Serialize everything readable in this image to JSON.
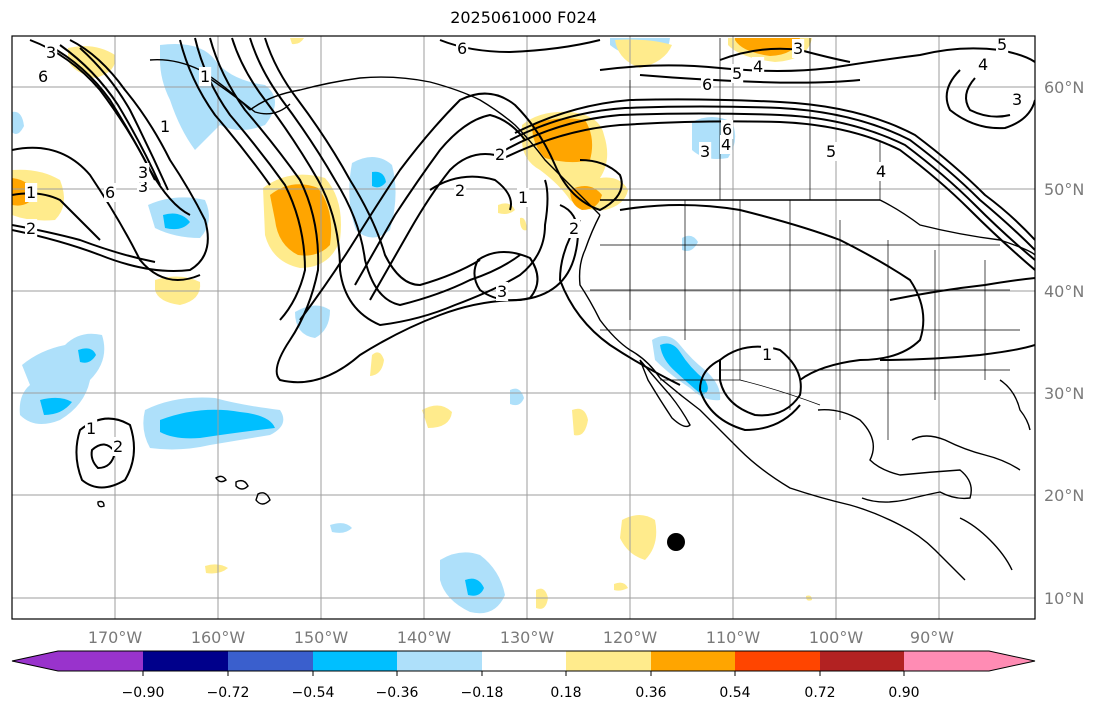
{
  "title": "2025061000 F024",
  "longitude_labels": [
    "170°W",
    "160°W",
    "150°W",
    "140°W",
    "130°W",
    "120°W",
    "110°W",
    "100°W",
    "90°W"
  ],
  "latitude_labels": [
    "60°N",
    "50°N",
    "40°N",
    "30°N",
    "20°N",
    "10°N"
  ],
  "colorbar": {
    "ticks": [
      "−0.90",
      "−0.72",
      "−0.54",
      "−0.36",
      "−0.18",
      "0.18",
      "0.36",
      "0.54",
      "0.72",
      "0.90"
    ],
    "colors": [
      "#9933cc",
      "#00008b",
      "#3a5fcd",
      "#00bfff",
      "#aee0fa",
      "#ffffff",
      "#ffeb8c",
      "#ffa500",
      "#ff4500",
      "#b22222",
      "#ff8cb4"
    ]
  },
  "contour_labels": [
    "3",
    "6",
    "6",
    "3",
    "5",
    "4",
    "5",
    "4",
    "3",
    "6",
    "4",
    "3",
    "6",
    "5",
    "4",
    "3",
    "1",
    "2",
    "6",
    "1",
    "2",
    "1",
    "2",
    "3",
    "1",
    "1",
    "2",
    "2",
    "3",
    "1"
  ]
}
